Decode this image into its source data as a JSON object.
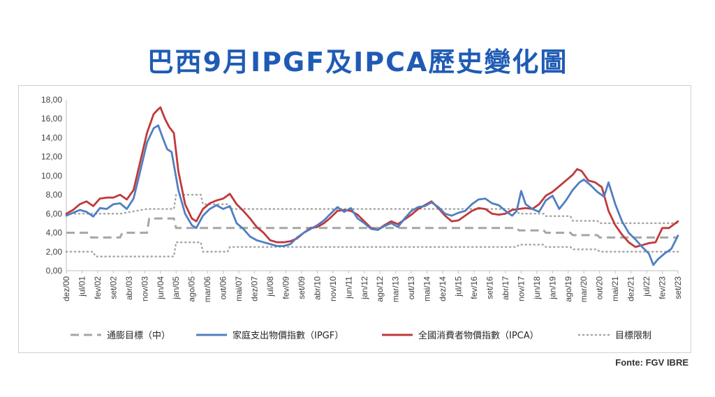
{
  "title": "巴西9月IPGF及IPCA歷史變化圖",
  "source": "Fonte: FGV IBRE",
  "colors": {
    "title": "#1f5bb5",
    "ipgf": "#4f7fc1",
    "ipca": "#c0393a",
    "target": "#a6a6a6",
    "limit": "#a6a6a6"
  },
  "chart_data": {
    "type": "line",
    "x_start": "dez/00",
    "x_end": "set/23",
    "ylim": [
      0,
      18
    ],
    "y_ticks": [
      "0,00",
      "2,00",
      "4,00",
      "6,00",
      "8,00",
      "10,00",
      "12,00",
      "14,00",
      "16,00",
      "18,00"
    ],
    "x_ticks": [
      "dez/00",
      "jul/01",
      "fev/02",
      "set/02",
      "abr/03",
      "nov/03",
      "jun/04",
      "jan/05",
      "ago/05",
      "mar/06",
      "out/06",
      "mai/07",
      "dez/07",
      "jul/08",
      "fev/09",
      "set/09",
      "abr/10",
      "nov/10",
      "jun/11",
      "jan/12",
      "ago/12",
      "mar/13",
      "out/13",
      "mai/14",
      "dez/14",
      "jul/15",
      "fev/16",
      "set/16",
      "abr/17",
      "nov/17",
      "jun/18",
      "jan/19",
      "ago/19",
      "mar/20",
      "out/20",
      "mai/21",
      "dez/21",
      "jul/22",
      "fev/23",
      "set/23"
    ],
    "grid": false,
    "legend_position": "bottom",
    "series": [
      {
        "name": "通膨目標（中）",
        "style": "dashed",
        "color": "#a6a6a6",
        "points": [
          [
            0,
            4
          ],
          [
            10,
            4
          ],
          [
            11,
            3.5
          ],
          [
            24,
            3.5
          ],
          [
            25,
            4
          ],
          [
            36,
            4
          ],
          [
            37,
            5.5
          ],
          [
            48,
            5.5
          ],
          [
            49,
            4.5
          ],
          [
            201,
            4.5
          ],
          [
            202,
            4.25
          ],
          [
            213,
            4.25
          ],
          [
            214,
            4
          ],
          [
            225,
            4
          ],
          [
            226,
            3.75
          ],
          [
            237,
            3.75
          ],
          [
            238,
            3.5
          ],
          [
            273,
            3.5
          ]
        ]
      },
      {
        "name": "家庭支出物價指數（IPGF）",
        "style": "solid",
        "color": "#4f7fc1",
        "points": [
          [
            0,
            5.8
          ],
          [
            3,
            6.1
          ],
          [
            6,
            6.4
          ],
          [
            9,
            6.2
          ],
          [
            12,
            5.7
          ],
          [
            15,
            6.6
          ],
          [
            18,
            6.5
          ],
          [
            21,
            7.0
          ],
          [
            24,
            7.1
          ],
          [
            27,
            6.5
          ],
          [
            30,
            7.6
          ],
          [
            33,
            10.5
          ],
          [
            36,
            13.5
          ],
          [
            39,
            15.0
          ],
          [
            41,
            15.3
          ],
          [
            43,
            14.0
          ],
          [
            45,
            12.8
          ],
          [
            47,
            12.5
          ],
          [
            50,
            8.5
          ],
          [
            53,
            6.0
          ],
          [
            56,
            4.8
          ],
          [
            58,
            4.5
          ],
          [
            61,
            5.8
          ],
          [
            64,
            6.5
          ],
          [
            67,
            6.9
          ],
          [
            70,
            6.5
          ],
          [
            73,
            6.8
          ],
          [
            76,
            5.0
          ],
          [
            79,
            4.4
          ],
          [
            82,
            3.6
          ],
          [
            85,
            3.2
          ],
          [
            88,
            3.0
          ],
          [
            91,
            2.8
          ],
          [
            94,
            2.6
          ],
          [
            97,
            2.6
          ],
          [
            100,
            2.8
          ],
          [
            103,
            3.5
          ],
          [
            106,
            4.0
          ],
          [
            109,
            4.4
          ],
          [
            112,
            4.8
          ],
          [
            115,
            5.3
          ],
          [
            118,
            6.0
          ],
          [
            121,
            6.7
          ],
          [
            124,
            6.2
          ],
          [
            127,
            6.6
          ],
          [
            130,
            5.5
          ],
          [
            133,
            5.0
          ],
          [
            136,
            4.4
          ],
          [
            139,
            4.3
          ],
          [
            142,
            4.7
          ],
          [
            145,
            5.0
          ],
          [
            148,
            4.6
          ],
          [
            151,
            5.5
          ],
          [
            154,
            6.3
          ],
          [
            157,
            6.7
          ],
          [
            160,
            6.8
          ],
          [
            163,
            7.2
          ],
          [
            166,
            6.7
          ],
          [
            169,
            6.0
          ],
          [
            172,
            5.8
          ],
          [
            175,
            6.1
          ],
          [
            178,
            6.3
          ],
          [
            181,
            7.0
          ],
          [
            184,
            7.5
          ],
          [
            187,
            7.6
          ],
          [
            190,
            7.1
          ],
          [
            193,
            6.9
          ],
          [
            196,
            6.3
          ],
          [
            199,
            5.8
          ],
          [
            201,
            6.3
          ],
          [
            203,
            8.4
          ],
          [
            205,
            7.0
          ],
          [
            208,
            6.5
          ],
          [
            211,
            6.2
          ],
          [
            214,
            7.4
          ],
          [
            217,
            7.9
          ],
          [
            220,
            6.5
          ],
          [
            223,
            7.4
          ],
          [
            226,
            8.5
          ],
          [
            229,
            9.3
          ],
          [
            231,
            9.6
          ],
          [
            234,
            9.0
          ],
          [
            237,
            8.3
          ],
          [
            240,
            7.8
          ],
          [
            242,
            9.3
          ],
          [
            245,
            7.0
          ],
          [
            248,
            5.2
          ],
          [
            251,
            4.0
          ],
          [
            254,
            3.3
          ],
          [
            257,
            2.5
          ],
          [
            260,
            1.8
          ],
          [
            262,
            0.6
          ],
          [
            264,
            1.2
          ],
          [
            267,
            1.8
          ],
          [
            270,
            2.3
          ],
          [
            273,
            3.7
          ]
        ]
      },
      {
        "name": "全國消費者物價指數（IPCA）",
        "style": "solid",
        "color": "#c0393a",
        "points": [
          [
            0,
            6.0
          ],
          [
            3,
            6.4
          ],
          [
            6,
            7.0
          ],
          [
            9,
            7.3
          ],
          [
            12,
            6.8
          ],
          [
            15,
            7.6
          ],
          [
            18,
            7.7
          ],
          [
            21,
            7.7
          ],
          [
            24,
            8.0
          ],
          [
            27,
            7.5
          ],
          [
            30,
            8.5
          ],
          [
            33,
            11.5
          ],
          [
            36,
            14.5
          ],
          [
            39,
            16.5
          ],
          [
            41,
            17.0
          ],
          [
            42,
            17.2
          ],
          [
            44,
            16.0
          ],
          [
            46,
            15.1
          ],
          [
            48,
            14.5
          ],
          [
            50,
            10.5
          ],
          [
            53,
            7.0
          ],
          [
            56,
            5.5
          ],
          [
            58,
            5.2
          ],
          [
            61,
            6.5
          ],
          [
            64,
            7.1
          ],
          [
            67,
            7.4
          ],
          [
            70,
            7.6
          ],
          [
            73,
            8.1
          ],
          [
            76,
            7.0
          ],
          [
            79,
            6.3
          ],
          [
            82,
            5.5
          ],
          [
            85,
            4.6
          ],
          [
            88,
            4.0
          ],
          [
            91,
            3.2
          ],
          [
            94,
            3.0
          ],
          [
            97,
            3.0
          ],
          [
            100,
            3.1
          ],
          [
            103,
            3.4
          ],
          [
            106,
            4.0
          ],
          [
            109,
            4.5
          ],
          [
            112,
            4.6
          ],
          [
            115,
            5.0
          ],
          [
            118,
            5.6
          ],
          [
            121,
            6.3
          ],
          [
            124,
            6.4
          ],
          [
            127,
            6.3
          ],
          [
            130,
            5.9
          ],
          [
            133,
            5.2
          ],
          [
            136,
            4.5
          ],
          [
            139,
            4.3
          ],
          [
            142,
            4.8
          ],
          [
            145,
            5.2
          ],
          [
            148,
            4.9
          ],
          [
            151,
            5.4
          ],
          [
            154,
            5.9
          ],
          [
            157,
            6.5
          ],
          [
            160,
            6.9
          ],
          [
            163,
            7.3
          ],
          [
            166,
            6.6
          ],
          [
            169,
            5.8
          ],
          [
            172,
            5.2
          ],
          [
            175,
            5.3
          ],
          [
            178,
            5.8
          ],
          [
            181,
            6.3
          ],
          [
            184,
            6.6
          ],
          [
            187,
            6.5
          ],
          [
            190,
            6.0
          ],
          [
            193,
            5.9
          ],
          [
            196,
            6.0
          ],
          [
            199,
            6.4
          ],
          [
            202,
            6.5
          ],
          [
            205,
            6.6
          ],
          [
            208,
            6.5
          ],
          [
            211,
            7.0
          ],
          [
            214,
            7.9
          ],
          [
            217,
            8.3
          ],
          [
            220,
            8.9
          ],
          [
            223,
            9.5
          ],
          [
            226,
            10.1
          ],
          [
            228,
            10.7
          ],
          [
            230,
            10.5
          ],
          [
            233,
            9.5
          ],
          [
            236,
            9.3
          ],
          [
            239,
            8.8
          ],
          [
            242,
            6.3
          ],
          [
            245,
            4.8
          ],
          [
            248,
            3.8
          ],
          [
            251,
            3.0
          ],
          [
            254,
            2.5
          ],
          [
            257,
            2.7
          ],
          [
            260,
            2.9
          ],
          [
            263,
            3.0
          ],
          [
            266,
            4.5
          ],
          [
            269,
            4.5
          ],
          [
            273,
            5.2
          ]
        ]
      },
      {
        "name": "目標限制",
        "style": "dotted",
        "color": "#a6a6a6",
        "points": [
          [
            0,
            6
          ],
          [
            24,
            6
          ],
          [
            36,
            6.5
          ],
          [
            48,
            6.5
          ],
          [
            49,
            8
          ],
          [
            60,
            8
          ],
          [
            61,
            7
          ],
          [
            72,
            7
          ],
          [
            73,
            6.5
          ],
          [
            201,
            6.5
          ],
          [
            202,
            6.0
          ],
          [
            213,
            6.0
          ],
          [
            214,
            5.75
          ],
          [
            225,
            5.75
          ],
          [
            226,
            5.25
          ],
          [
            237,
            5.25
          ],
          [
            238,
            5.0
          ],
          [
            273,
            5.0
          ]
        ]
      },
      {
        "name": "",
        "style": "dotted",
        "color": "#a6a6a6",
        "points": [
          [
            0,
            2
          ],
          [
            12,
            2
          ],
          [
            13,
            1.5
          ],
          [
            48,
            1.5
          ],
          [
            49,
            3
          ],
          [
            60,
            3
          ],
          [
            61,
            2.0
          ],
          [
            72,
            2.0
          ],
          [
            73,
            2.5
          ],
          [
            201,
            2.5
          ],
          [
            202,
            2.75
          ],
          [
            213,
            2.75
          ],
          [
            214,
            2.5
          ],
          [
            225,
            2.5
          ],
          [
            226,
            2.25
          ],
          [
            237,
            2.25
          ],
          [
            238,
            2.0
          ],
          [
            273,
            2.0
          ]
        ]
      }
    ]
  }
}
